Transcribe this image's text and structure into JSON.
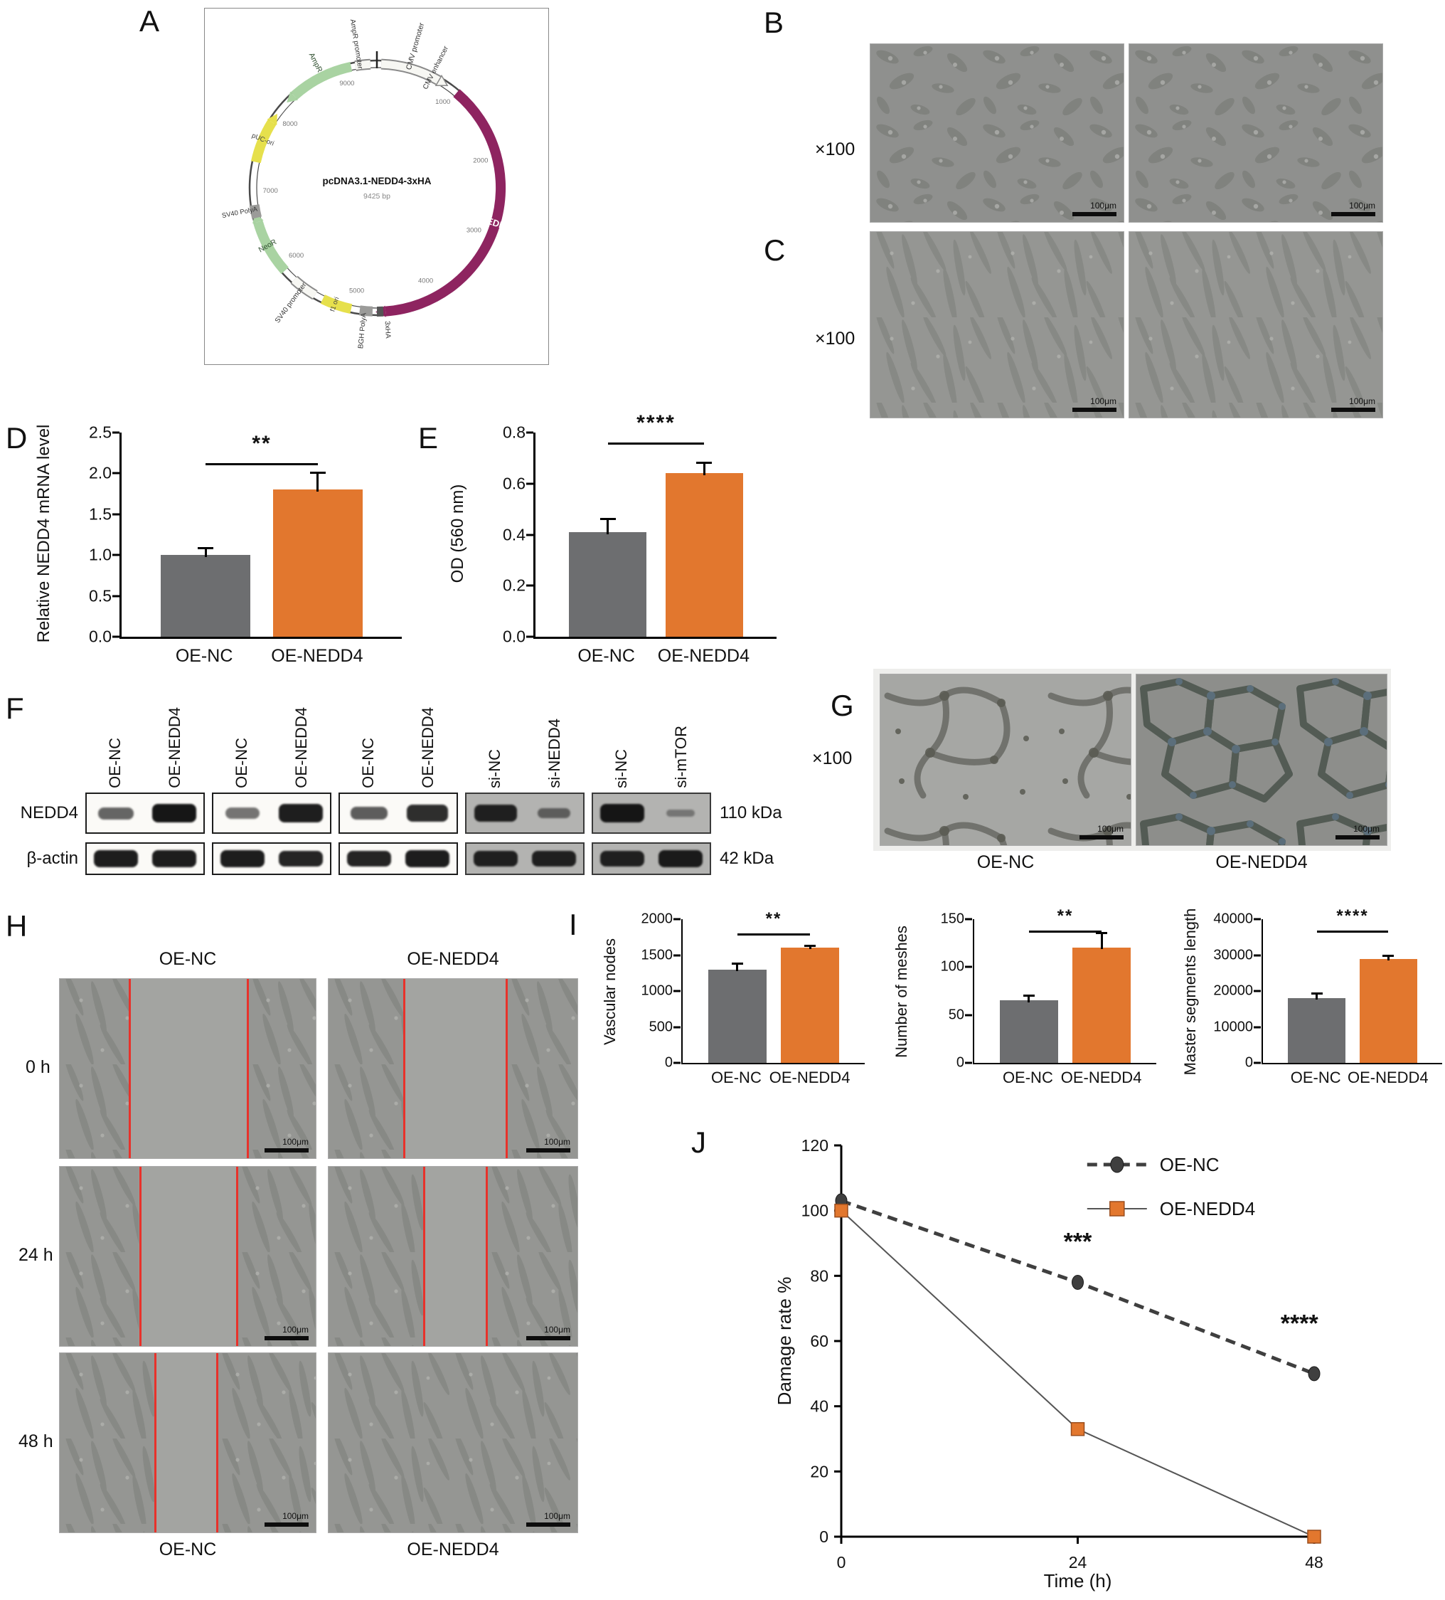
{
  "panels": {
    "a": "A",
    "b": "B",
    "c": "C",
    "d": "D",
    "e": "E",
    "f": "F",
    "g": "G",
    "h": "H",
    "i": "I",
    "j": "J"
  },
  "magnification": "×100",
  "scale_bar": "100μm",
  "group_labels": {
    "nc": "OE-NC",
    "oe": "OE-NEDD4"
  },
  "plasmid": {
    "title": "pcDNA3.1-NEDD4-3xHA",
    "subtitle": "9425 bp",
    "features": {
      "cmv_promoter": "CMV promoter",
      "cmv_enhancer": "CMV enhancer",
      "nedd4": "NEDD4",
      "ha_tag": "3xHA",
      "bgh_polya": "BGH PolyA",
      "f1_ori": "f1 ori",
      "sv40_promoter": "SV40 promoter",
      "neor": "NeoR",
      "sv40_polya": "SV40 PolyA",
      "puc_ori": "pUC-ori",
      "ampr": "AmpR",
      "ampr_promoter": "AmpR promoter"
    },
    "ticks": [
      "1000",
      "2000",
      "3000",
      "4000",
      "5000",
      "6000",
      "7000",
      "8000",
      "9000"
    ]
  },
  "western": {
    "protein_labels": [
      "NEDD4",
      "β-actin"
    ],
    "kda_labels": [
      "110 kDa",
      "42 kDa"
    ],
    "groups": [
      {
        "shade": "light",
        "lanes": [
          {
            "label": "OE-NC",
            "nedd4": 0.5,
            "actin": 0.95
          },
          {
            "label": "OE-NEDD4",
            "nedd4": 1.0,
            "actin": 0.95
          }
        ]
      },
      {
        "shade": "light",
        "lanes": [
          {
            "label": "OE-NC",
            "nedd4": 0.4,
            "actin": 0.95
          },
          {
            "label": "OE-NEDD4",
            "nedd4": 0.95,
            "actin": 0.9
          }
        ]
      },
      {
        "shade": "light",
        "lanes": [
          {
            "label": "OE-NC",
            "nedd4": 0.55,
            "actin": 0.9
          },
          {
            "label": "OE-NEDD4",
            "nedd4": 0.85,
            "actin": 0.95
          }
        ]
      },
      {
        "shade": "dark",
        "lanes": [
          {
            "label": "si-NC",
            "nedd4": 0.9,
            "actin": 0.9
          },
          {
            "label": "si-NEDD4",
            "nedd4": 0.35,
            "actin": 0.9
          }
        ]
      },
      {
        "shade": "dark",
        "lanes": [
          {
            "label": "si-NC",
            "nedd4": 1.0,
            "actin": 0.9
          },
          {
            "label": "si-mTOR",
            "nedd4": 0.12,
            "actin": 0.95
          }
        ]
      }
    ]
  },
  "wound": {
    "row_labels": [
      "0 h",
      "24 h",
      "48 h"
    ]
  },
  "chart_data": [
    {
      "type": "bar",
      "ylabel": "Relative NEDD4 mRNA level",
      "categories": [
        "OE-NC",
        "OE-NEDD4"
      ],
      "values": [
        1.0,
        1.8
      ],
      "errors": [
        0.08,
        0.2
      ],
      "ylim": [
        0,
        2.5
      ],
      "yticks": [
        "0.0",
        "0.5",
        "1.0",
        "1.5",
        "2.0",
        "2.5"
      ],
      "significance": "**",
      "colors": [
        "#6d6e70",
        "#e2772e"
      ],
      "sig_top_pct": 15
    },
    {
      "type": "bar",
      "ylabel": "OD (560 nm)",
      "categories": [
        "OE-NC",
        "OE-NEDD4"
      ],
      "values": [
        0.41,
        0.64
      ],
      "errors": [
        0.05,
        0.04
      ],
      "ylim": [
        0,
        0.8
      ],
      "yticks": [
        "0.0",
        "0.2",
        "0.4",
        "0.6",
        "0.8"
      ],
      "significance": "****",
      "colors": [
        "#6d6e70",
        "#e2772e"
      ],
      "sig_top_pct": 5
    },
    {
      "type": "bar",
      "ylabel": "Vascular nodes",
      "categories": [
        "OE-NC",
        "OE-NEDD4"
      ],
      "values": [
        1300,
        1600
      ],
      "errors": [
        80,
        25
      ],
      "ylim": [
        0,
        2000
      ],
      "yticks": [
        "0",
        "500",
        "1000",
        "1500",
        "2000"
      ],
      "significance": "**",
      "colors": [
        "#6d6e70",
        "#e2772e"
      ],
      "sig_top_pct": 10
    },
    {
      "type": "bar",
      "ylabel": "Number of meshes",
      "categories": [
        "OE-NC",
        "OE-NEDD4"
      ],
      "values": [
        65,
        120
      ],
      "errors": [
        5,
        15
      ],
      "ylim": [
        0,
        150
      ],
      "yticks": [
        "0",
        "50",
        "100",
        "150"
      ],
      "significance": "**",
      "colors": [
        "#6d6e70",
        "#e2772e"
      ],
      "sig_top_pct": 8
    },
    {
      "type": "bar",
      "ylabel": "Master segments length",
      "categories": [
        "OE-NC",
        "OE-NEDD4"
      ],
      "values": [
        18000,
        29000
      ],
      "errors": [
        1300,
        700
      ],
      "ylim": [
        0,
        40000
      ],
      "yticks": [
        "0",
        "10000",
        "20000",
        "30000",
        "40000"
      ],
      "significance": "****",
      "colors": [
        "#6d6e70",
        "#e2772e"
      ],
      "sig_top_pct": 8
    },
    {
      "type": "line",
      "ylabel": "Damage rate %",
      "xlabel": "Time (h)",
      "x": [
        0,
        24,
        48
      ],
      "xticks": [
        "0",
        "24",
        "48"
      ],
      "ylim": [
        0,
        120
      ],
      "yticks": [
        "0",
        "20",
        "40",
        "60",
        "80",
        "100",
        "120"
      ],
      "series": [
        {
          "name": "OE-NC",
          "values": [
            103,
            78,
            50
          ],
          "color": "#3f3f3f",
          "dash": "14 9",
          "marker": "circle"
        },
        {
          "name": "OE-NEDD4",
          "values": [
            100,
            33,
            0
          ],
          "color": "#e2772e",
          "line_color": "#555555",
          "dash": "",
          "marker": "square"
        }
      ],
      "annotations": [
        {
          "text": "***",
          "x": 24,
          "y": 88
        },
        {
          "text": "****",
          "x": 46.5,
          "y": 63
        }
      ]
    }
  ]
}
